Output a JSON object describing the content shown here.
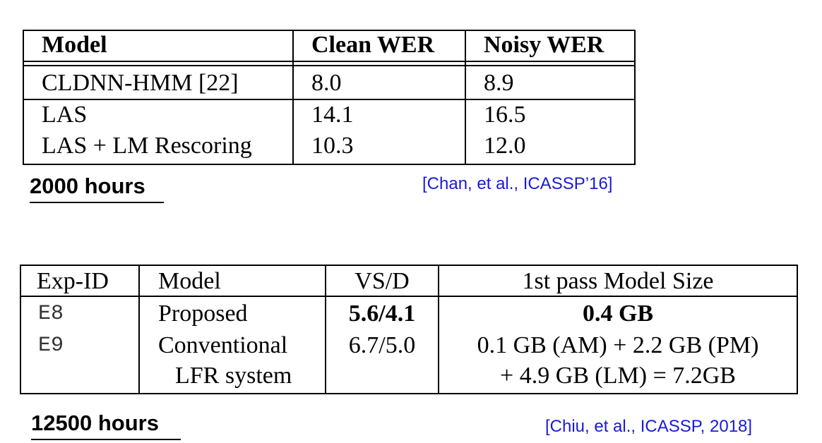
{
  "table1": {
    "headers": [
      "Model",
      "Clean WER",
      "Noisy WER"
    ],
    "rows": [
      [
        "CLDNN-HMM [22]",
        "8.0",
        "8.9"
      ],
      [
        "LAS",
        "14.1",
        "16.5"
      ],
      [
        "LAS + LM Rescoring",
        "10.3",
        "12.0"
      ]
    ],
    "hours_label": "2000 hours",
    "citation": "[Chan, et al., ICASSP’16]"
  },
  "table2": {
    "headers": [
      "Exp-ID",
      "Model",
      "VS/D",
      "1st pass Model Size"
    ],
    "rows": [
      {
        "exp_id": "E8",
        "model_lines": [
          "Proposed"
        ],
        "vsd": "5.6/4.1",
        "size_lines": [
          "0.4 GB"
        ]
      },
      {
        "exp_id": "E9",
        "model_lines": [
          "Conventional",
          "LFR system"
        ],
        "vsd": "6.7/5.0",
        "size_lines": [
          "0.1 GB (AM) + 2.2 GB (PM)",
          "+ 4.9 GB (LM) = 7.2GB"
        ]
      }
    ],
    "hours_label": "12500 hours",
    "citation": "[Chiu, et al., ICASSP, 2018]"
  }
}
